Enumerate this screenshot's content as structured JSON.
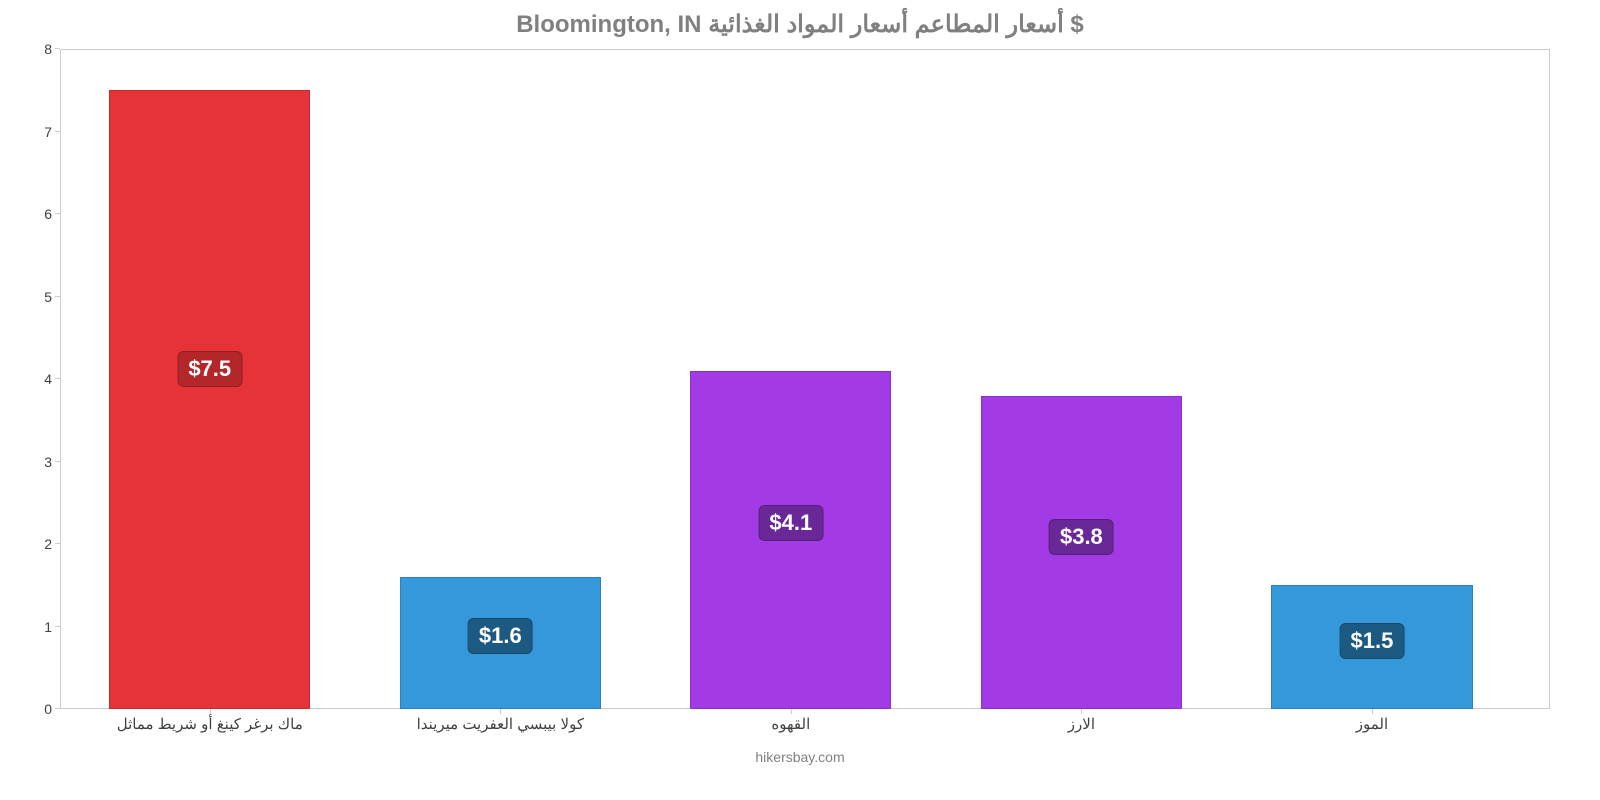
{
  "chart": {
    "type": "bar",
    "title": "Bloomington, IN أسعار المطاعم أسعار المواد الغذائية $",
    "title_color": "#808080",
    "title_fontsize": 24,
    "background_color": "#ffffff",
    "axis_color": "#cccccc",
    "y": {
      "min": 0,
      "max": 8,
      "step": 1,
      "ticks": [
        "0",
        "1",
        "2",
        "3",
        "4",
        "5",
        "6",
        "7",
        "8"
      ],
      "label_color": "#404040",
      "label_fontsize": 14
    },
    "x": {
      "label_color": "#404040",
      "label_fontsize": 15
    },
    "bars": [
      {
        "label": "ماك برغر كينغ أو شريط مماثل",
        "value": 7.5,
        "display": "$7.5",
        "bar_color": "#e63338",
        "badge_color": "#b3262a"
      },
      {
        "label": "كولا بيبسي العفريت ميريندا",
        "value": 1.6,
        "display": "$1.6",
        "bar_color": "#3498db",
        "badge_color": "#1d5a82"
      },
      {
        "label": "القهوه",
        "value": 4.1,
        "display": "$4.1",
        "bar_color": "#a23be5",
        "badge_color": "#6a2798"
      },
      {
        "label": "الارز",
        "value": 3.8,
        "display": "$3.8",
        "bar_color": "#a23be5",
        "badge_color": "#6a2798"
      },
      {
        "label": "الموز",
        "value": 1.5,
        "display": "$1.5",
        "bar_color": "#3498db",
        "badge_color": "#1d5a82"
      }
    ],
    "bar_width_pct": 13.5,
    "bar_gap_pct": 6.0,
    "bar_start_pct": 3.3,
    "value_badge_fontsize": 22,
    "value_badge_text_color": "#ffffff",
    "footer": "hikersbay.com",
    "footer_color": "#808080",
    "footer_fontsize": 14
  }
}
